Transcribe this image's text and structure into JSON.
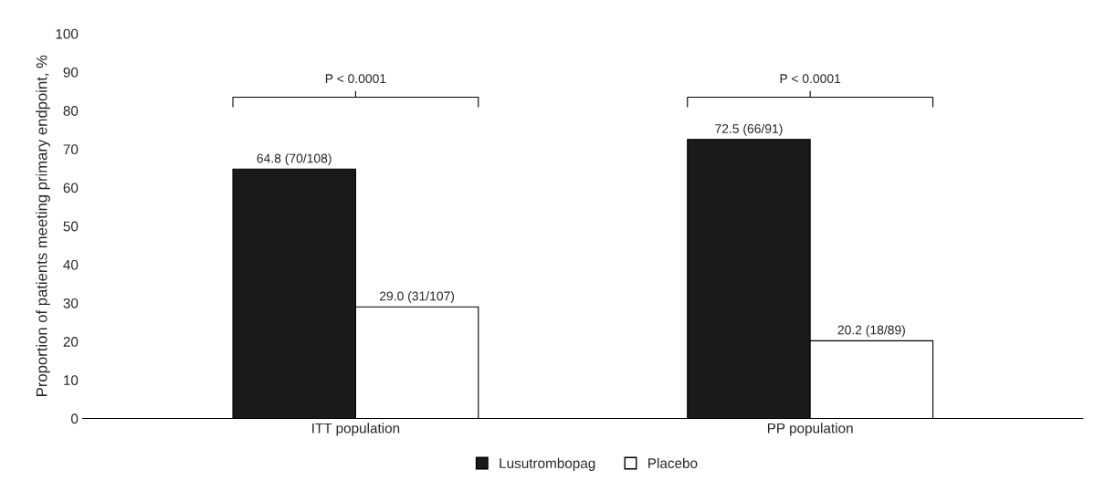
{
  "chart_data": {
    "type": "bar",
    "ylabel": "Proportion of patients meeting primary endpoint, %",
    "categories": [
      "ITT population",
      "PP population"
    ],
    "series": [
      {
        "name": "Lusutrombopag",
        "color": "#1a1a1a",
        "values": [
          64.8,
          72.5
        ],
        "value_labels": [
          "64.8 (70/108)",
          "72.5 (66/91)"
        ]
      },
      {
        "name": "Placebo",
        "color": "#ffffff",
        "values": [
          29.0,
          20.2
        ],
        "value_labels": [
          "29.0 (31/107)",
          "20.2 (18/89)"
        ]
      }
    ],
    "ylim": [
      0,
      100
    ],
    "yticks": [
      0,
      10,
      20,
      30,
      40,
      50,
      60,
      70,
      80,
      90,
      100
    ],
    "annotations": [
      "P < 0.0001",
      "P < 0.0001"
    ],
    "grid": false,
    "legend": "bottom"
  }
}
